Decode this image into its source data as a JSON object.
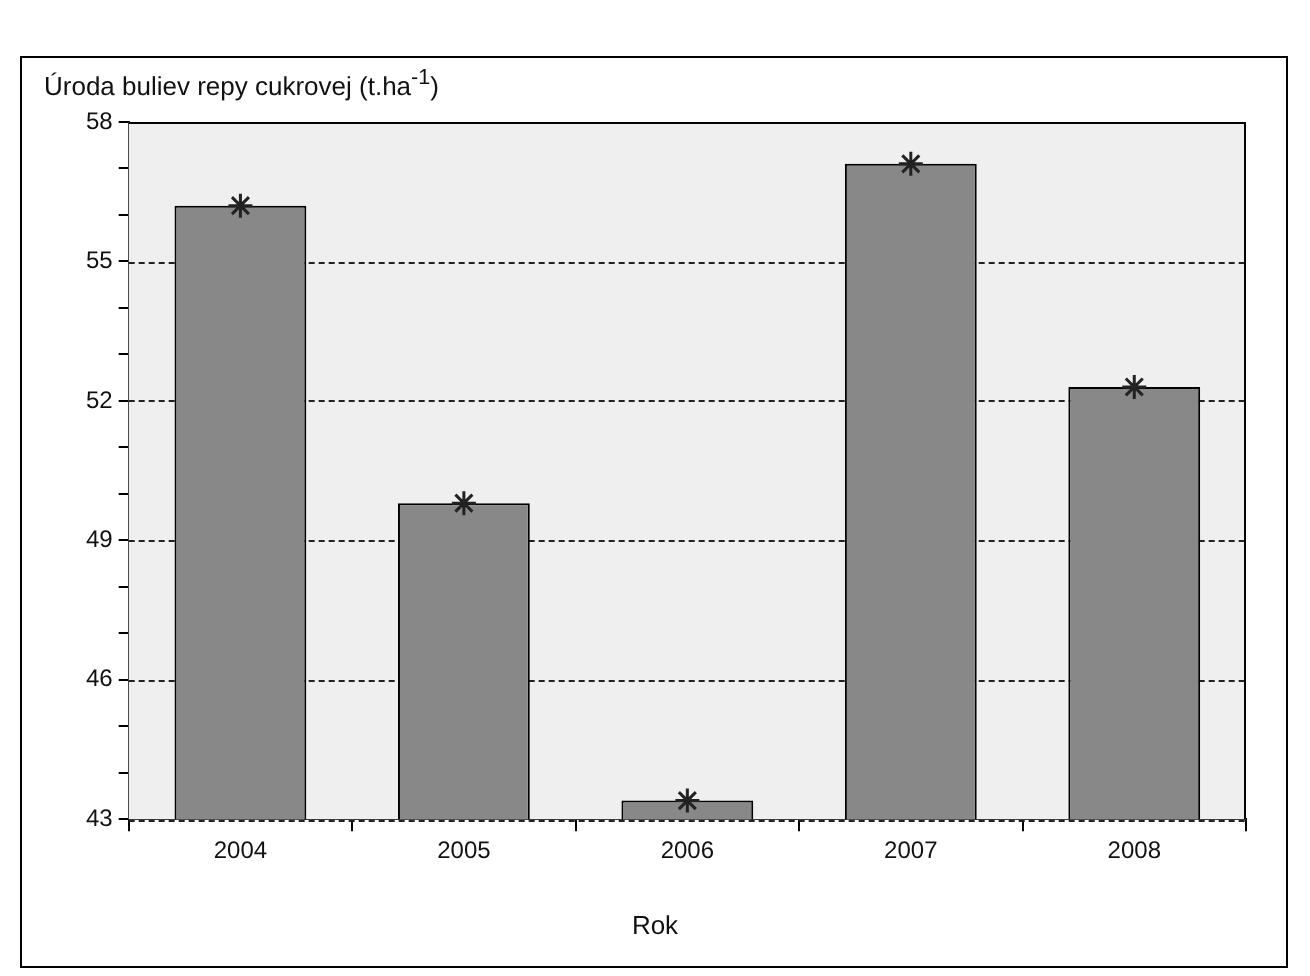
{
  "chart_data": {
    "type": "bar",
    "xlabel": "Rok",
    "ylabel": "Úroda buliev repy cukrovej (t.ha$^{-1}$)",
    "categories": [
      "2004",
      "2005",
      "2006",
      "2007",
      "2008"
    ],
    "series": [
      {
        "color": "#888888",
        "values": [
          56.2,
          49.8,
          43.4,
          57.1,
          52.3
        ]
      },
      {
        "type": "scatter",
        "marker": "cross",
        "color": "#222222",
        "values": [
          56.2,
          49.8,
          43.4,
          57.1,
          52.3
        ]
      }
    ],
    "ylim": [
      43,
      58
    ],
    "yticks": [
      43,
      {
        "value": 44,
        "label": null
      },
      {
        "value": 45,
        "label": null
      },
      46,
      {
        "value": 47,
        "label": null
      },
      {
        "value": 48,
        "label": null
      },
      49,
      {
        "value": 50,
        "label": null
      },
      {
        "value": 51,
        "label": null
      },
      52,
      {
        "value": 53,
        "label": null
      },
      {
        "value": 54,
        "label": null
      },
      55,
      {
        "value": 56,
        "label": null
      },
      {
        "value": 57,
        "label": null
      },
      58
    ],
    "grid": "y",
    "legend": false
  }
}
